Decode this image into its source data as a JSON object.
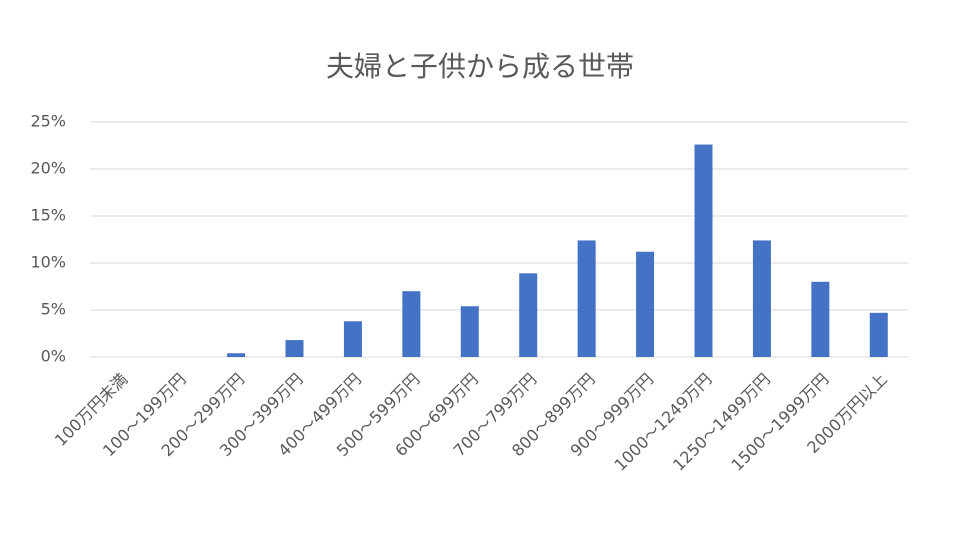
{
  "chart_data": {
    "type": "bar",
    "title": "夫婦と子供から成る世帯",
    "categories": [
      "100万円未満",
      "100～199万円",
      "200～299万円",
      "300～399万円",
      "400～499万円",
      "500～599万円",
      "600～699万円",
      "700～799万円",
      "800～899万円",
      "900～999万円",
      "1000～1249万円",
      "1250～1499万円",
      "1500～1999万円",
      "2000万円以上"
    ],
    "values": [
      0,
      0,
      0.4,
      1.8,
      3.8,
      7.0,
      5.4,
      8.9,
      12.4,
      11.2,
      22.6,
      12.4,
      8.0,
      4.7
    ],
    "color": "#4472c4",
    "ylim": [
      0,
      25
    ],
    "yticks": [
      {
        "value": 0,
        "label": "0%"
      },
      {
        "value": 5,
        "label": "5%"
      },
      {
        "value": 10,
        "label": "10%"
      },
      {
        "value": 15,
        "label": "15%"
      },
      {
        "value": 20,
        "label": "20%"
      },
      {
        "value": 25,
        "label": "25%"
      }
    ],
    "grid": true
  }
}
